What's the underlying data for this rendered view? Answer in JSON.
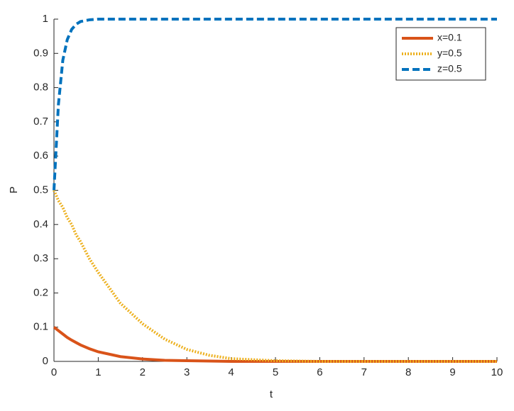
{
  "chart_data": {
    "type": "line",
    "x_label": "t",
    "y_label": "P",
    "x": [
      0,
      0.1,
      0.2,
      0.3,
      0.4,
      0.5,
      0.6,
      0.8,
      1,
      1.5,
      2,
      2.5,
      3,
      3.5,
      4,
      5,
      6,
      7,
      8,
      9,
      10
    ],
    "series": [
      {
        "name": "x=0.1",
        "color": "#d95319",
        "line_style": "solid",
        "values": [
          0.1,
          0.09,
          0.08,
          0.07,
          0.062,
          0.055,
          0.048,
          0.037,
          0.028,
          0.014,
          0.007,
          0.003,
          0.002,
          0.001,
          0,
          0,
          0,
          0,
          0,
          0,
          0
        ]
      },
      {
        "name": "y=0.5",
        "color": "#edb120",
        "line_style": "dotted",
        "values": [
          0.5,
          0.47,
          0.45,
          0.42,
          0.4,
          0.37,
          0.35,
          0.3,
          0.26,
          0.17,
          0.11,
          0.065,
          0.035,
          0.018,
          0.008,
          0.002,
          0,
          0,
          0,
          0,
          0
        ]
      },
      {
        "name": "z=0.5",
        "color": "#0072bd",
        "line_style": "dashed",
        "values": [
          0.5,
          0.75,
          0.88,
          0.94,
          0.97,
          0.985,
          0.993,
          0.998,
          1,
          1,
          1,
          1,
          1,
          1,
          1,
          1,
          1,
          1,
          1,
          1,
          1
        ]
      }
    ],
    "xlim": [
      0,
      10
    ],
    "xticks": [
      0,
      1,
      2,
      3,
      4,
      5,
      6,
      7,
      8,
      9,
      10
    ],
    "ylim": [
      0,
      1
    ],
    "yticks": [
      0,
      0.1,
      0.2,
      0.3,
      0.4,
      0.5,
      0.6,
      0.7,
      0.8,
      0.9,
      1
    ],
    "legend": "top-right"
  }
}
